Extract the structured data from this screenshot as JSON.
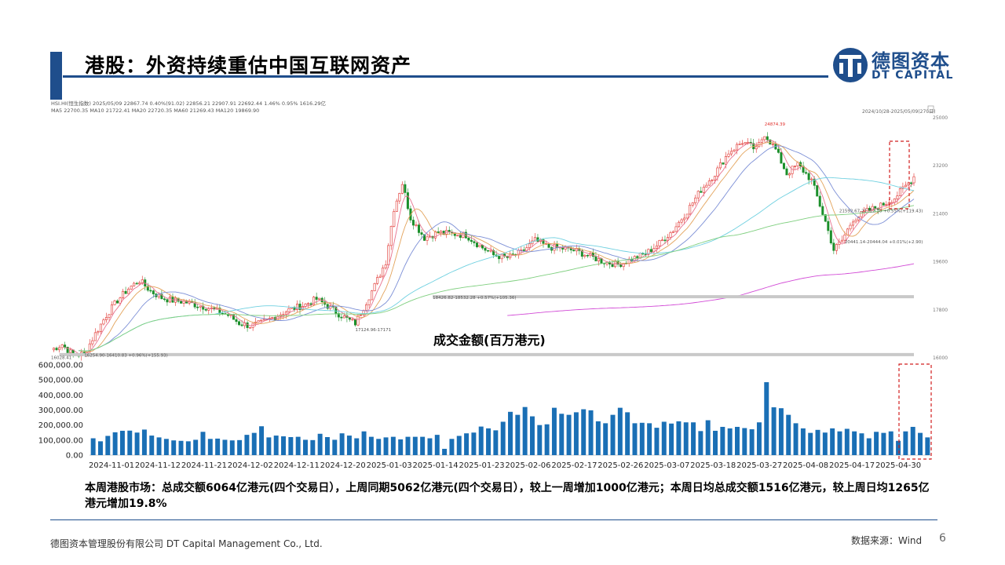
{
  "header": {
    "title": "港股：外资持续重估中国互联网资产",
    "logo_cn": "德图资本",
    "logo_en": "DT CAPITAL"
  },
  "colors": {
    "brand": "#1f4e8c",
    "up": "#e0302c",
    "down": "#1b8f2a",
    "bar": "#1a6fb5",
    "highlight": "#d11f1f"
  },
  "kline": {
    "info_line1": [
      "HSI.HI(恒生指数)",
      "2025/05/09",
      "22867.74",
      "0.40%(91.02)",
      "22856.21",
      "22907.91",
      "22692.44",
      "1.46%",
      "0.95%",
      "1616.29亿"
    ],
    "info_line2": [
      "MA5",
      "22700.35",
      "MA10",
      "21722.41",
      "MA20",
      "22720.35",
      "MA60",
      "21269.43",
      "MA120",
      "19869.90"
    ],
    "range_label": "2024/10/28-2025/05/09(270日)",
    "y_ticks": [
      "25000",
      "23200",
      "21400",
      "19600",
      "17800",
      "16000"
    ],
    "annotations": [
      "24874.39",
      "21592.67-21712.10 +0.55%(+119.43)",
      "20441.14-20444.04 +0.01%(+2.90)",
      "18426.82-18532.28 +0.57%(+105.36)",
      "17124.96-17171",
      "16254.90-16410.83 +0.96%(+155.93)",
      "16028.41"
    ]
  },
  "chart_data": {
    "type": "bar",
    "title": "成交金额(百万港元)",
    "ylim": [
      0,
      600000
    ],
    "y_ticks": [
      "600,000.00",
      "500,000.00",
      "400,000.00",
      "300,000.00",
      "200,000.00",
      "100,000.00",
      "0.00"
    ],
    "x_labels": [
      "2024-11-01",
      "2024-11-12",
      "2024-11-21",
      "2024-12-02",
      "2024-12-11",
      "2024-12-20",
      "2025-01-03",
      "2025-01-14",
      "2025-01-23",
      "2025-02-06",
      "2025-02-17",
      "2025-02-26",
      "2025-03-07",
      "2025-03-18",
      "2025-03-27",
      "2025-04-08",
      "2025-04-17",
      "2025-04-30"
    ],
    "values": [
      112000,
      92000,
      128000,
      152000,
      162000,
      163000,
      150000,
      170000,
      130000,
      118000,
      108000,
      98000,
      95000,
      92000,
      102000,
      155000,
      108000,
      110000,
      102000,
      98000,
      100000,
      135000,
      148000,
      192000,
      118000,
      130000,
      125000,
      120000,
      122000,
      102000,
      100000,
      142000,
      120000,
      102000,
      145000,
      130000,
      112000,
      158000,
      122000,
      108000,
      118000,
      122000,
      105000,
      122000,
      122000,
      122000,
      112000,
      135000,
      42000,
      108000,
      128000,
      145000,
      150000,
      190000,
      178000,
      165000,
      222000,
      288000,
      268000,
      320000,
      258000,
      200000,
      205000,
      315000,
      275000,
      268000,
      285000,
      305000,
      298000,
      225000,
      212000,
      268000,
      315000,
      285000,
      212000,
      215000,
      212000,
      182000,
      222000,
      210000,
      225000,
      218000,
      218000,
      160000,
      232000,
      162000,
      188000,
      178000,
      188000,
      180000,
      172000,
      218000,
      485000,
      318000,
      312000,
      268000,
      212000,
      178000,
      148000,
      168000,
      150000,
      178000,
      158000,
      175000,
      158000,
      145000,
      112000,
      155000,
      148000,
      158000,
      95000,
      158000,
      188000,
      148000,
      118000
    ]
  },
  "summary": "本周港股市场：总成交额6064亿港元(四个交易日），上周同期5062亿港元(四个交易日），较上一周增加1000亿港元；本周日均总成交额1516亿港元，较上周日均1265亿港元增加19.8%",
  "footer": {
    "company": "德图资本管理股份有限公司 DT Capital Management Co., Ltd.",
    "source": "数据来源：Wind",
    "page": "6"
  }
}
